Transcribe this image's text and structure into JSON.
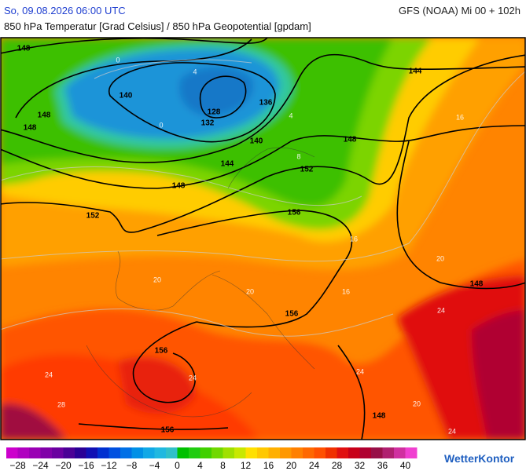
{
  "header": {
    "datetime": "So, 09.08.2026 06:00 UTC",
    "model": "GFS (NOAA) Mi 00 + 102h",
    "subtitle": "850 hPa Temperatur [Grad Celsius] / 850 hPa Geopotential [gpdam]"
  },
  "map": {
    "geopotential_labels": [
      "148",
      "140",
      "128",
      "132",
      "136",
      "140",
      "144",
      "148",
      "148",
      "148",
      "152",
      "152",
      "156",
      "148",
      "144",
      "156",
      "156",
      "156",
      "148",
      "148"
    ],
    "temperature_labels": [
      "0",
      "4",
      "0",
      "4",
      "8",
      "16",
      "16",
      "20",
      "20",
      "16",
      "20",
      "24",
      "24",
      "28",
      "24",
      "20",
      "24",
      "24"
    ]
  },
  "legend": {
    "colors": [
      "#cc00cc",
      "#b000c0",
      "#9a00b4",
      "#8000a8",
      "#6a00a0",
      "#4b0096",
      "#2a0096",
      "#1010b4",
      "#0030d0",
      "#0050e0",
      "#0070e6",
      "#0090e6",
      "#10a8e6",
      "#20b8e0",
      "#30c0c8",
      "#00c000",
      "#20cc10",
      "#40d000",
      "#70d800",
      "#a0e000",
      "#c8e800",
      "#ffe000",
      "#ffc800",
      "#ffb000",
      "#ff9800",
      "#ff8000",
      "#ff6800",
      "#ff5000",
      "#f03000",
      "#e01010",
      "#c80018",
      "#b00030",
      "#981048",
      "#b02070",
      "#d030a0",
      "#f040d0"
    ],
    "ticks": [
      "−28",
      "−24",
      "−20",
      "−16",
      "−12",
      "−8",
      "−4",
      "0",
      "4",
      "8",
      "12",
      "16",
      "20",
      "24",
      "28",
      "32",
      "36",
      "40"
    ]
  },
  "brand": "WetterKontor"
}
